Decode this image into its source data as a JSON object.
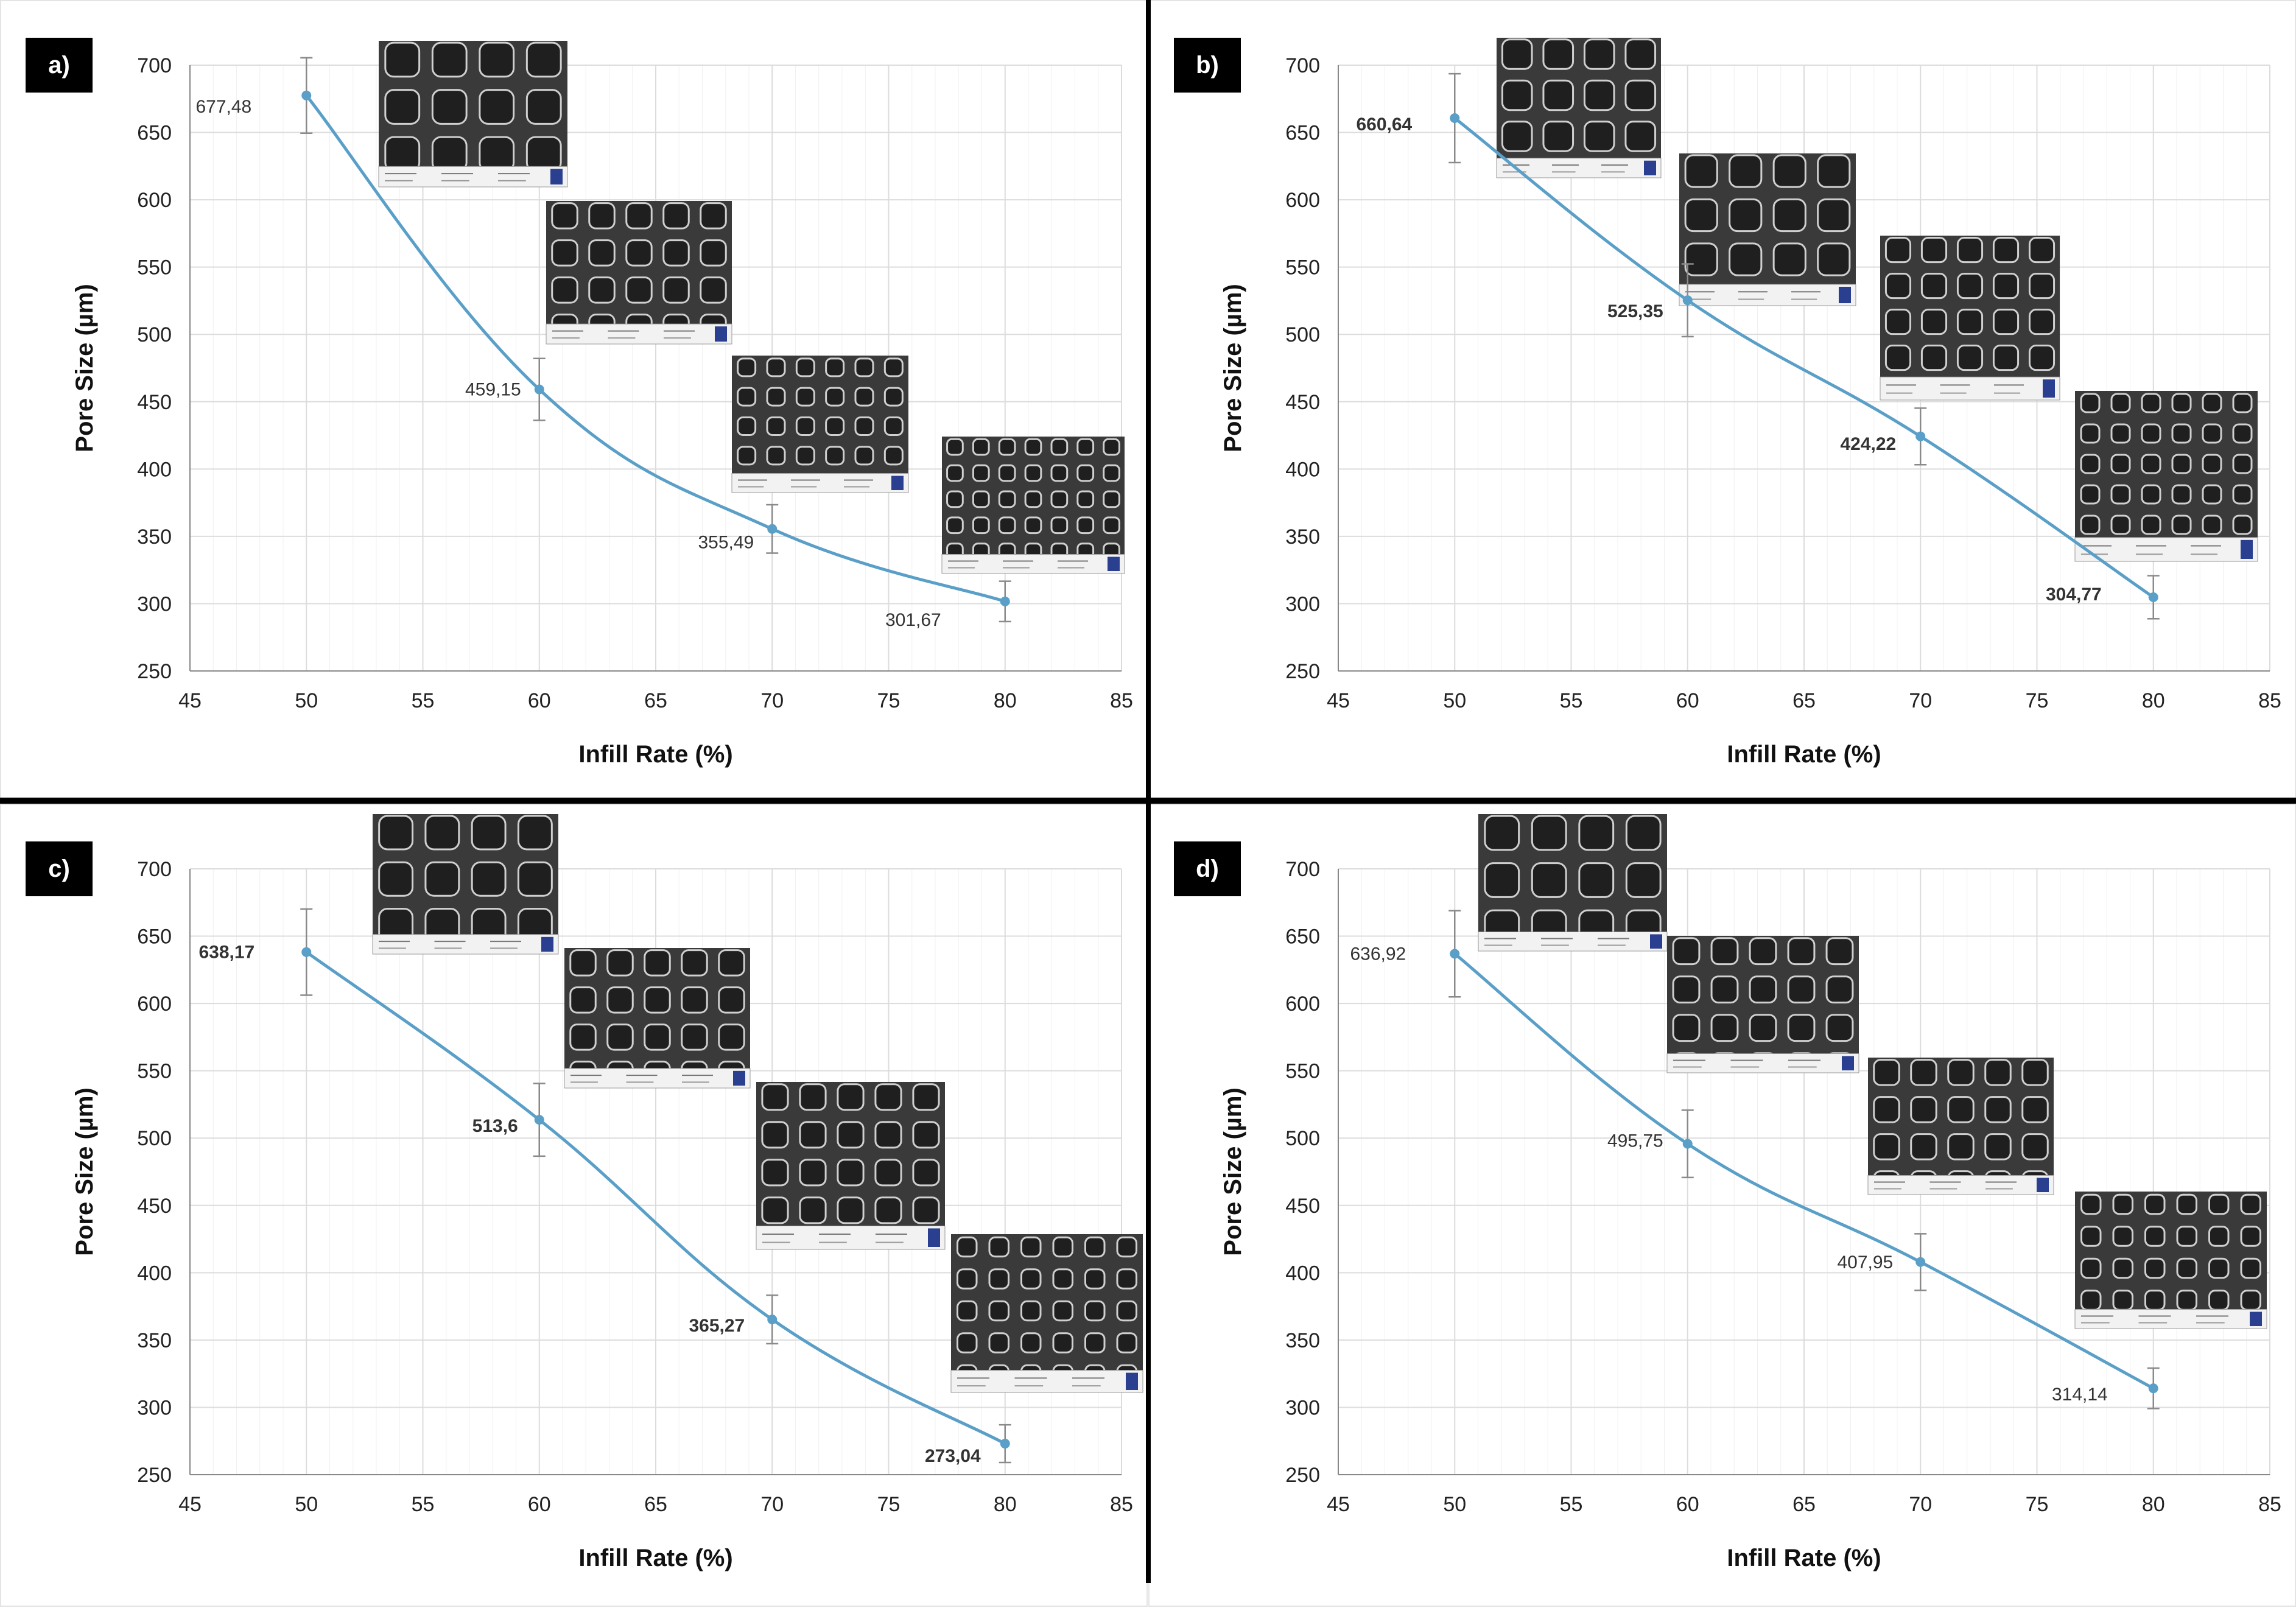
{
  "colors": {
    "line": "#5a9fc8",
    "errorbar": "#8a8a8a",
    "grid": "#e4e4e4"
  },
  "chart_data": [
    {
      "type": "line",
      "panel": "a)",
      "xlabel": "Infill Rate (%)",
      "ylabel": "Pore Size (µm)",
      "xlim": [
        45,
        85
      ],
      "ylim": [
        250,
        700
      ],
      "xticks": [
        45,
        50,
        55,
        60,
        65,
        70,
        75,
        80,
        85
      ],
      "yticks": [
        250,
        300,
        350,
        400,
        450,
        500,
        550,
        600,
        650,
        700
      ],
      "x": [
        50,
        60,
        70,
        80
      ],
      "y": [
        677.48,
        459.15,
        355.49,
        301.67
      ],
      "errors": [
        28,
        23,
        18,
        15
      ],
      "labels": [
        "677,48",
        "459,15",
        "355,49",
        "301,67"
      ],
      "label_weight": "normal"
    },
    {
      "type": "line",
      "panel": "b)",
      "xlabel": "Infill Rate (%)",
      "ylabel": "Pore Size (µm)",
      "xlim": [
        45,
        85
      ],
      "ylim": [
        250,
        700
      ],
      "xticks": [
        45,
        50,
        55,
        60,
        65,
        70,
        75,
        80,
        85
      ],
      "yticks": [
        250,
        300,
        350,
        400,
        450,
        500,
        550,
        600,
        650,
        700
      ],
      "x": [
        50,
        60,
        70,
        80
      ],
      "y": [
        660.64,
        525.35,
        424.22,
        304.77
      ],
      "errors": [
        33,
        27,
        21,
        16
      ],
      "labels": [
        "660,64",
        "525,35",
        "424,22",
        "304,77"
      ],
      "label_weight": "bold"
    },
    {
      "type": "line",
      "panel": "c)",
      "xlabel": "Infill Rate (%)",
      "ylabel": "Pore Size (µm)",
      "xlim": [
        45,
        85
      ],
      "ylim": [
        250,
        700
      ],
      "xticks": [
        45,
        50,
        55,
        60,
        65,
        70,
        75,
        80,
        85
      ],
      "yticks": [
        250,
        300,
        350,
        400,
        450,
        500,
        550,
        600,
        650,
        700
      ],
      "x": [
        50,
        60,
        70,
        80
      ],
      "y": [
        638.17,
        513.6,
        365.27,
        273.04
      ],
      "errors": [
        32,
        27,
        18,
        14
      ],
      "labels": [
        "638,17",
        "513,6",
        "365,27",
        "273,04"
      ],
      "label_weight": "bold"
    },
    {
      "type": "line",
      "panel": "d)",
      "xlabel": "Infill Rate (%)",
      "ylabel": "Pore Size (µm)",
      "xlim": [
        45,
        85
      ],
      "ylim": [
        250,
        700
      ],
      "xticks": [
        45,
        50,
        55,
        60,
        65,
        70,
        75,
        80,
        85
      ],
      "yticks": [
        250,
        300,
        350,
        400,
        450,
        500,
        550,
        600,
        650,
        700
      ],
      "x": [
        50,
        60,
        70,
        80
      ],
      "y": [
        636.92,
        495.75,
        407.95,
        314.14
      ],
      "errors": [
        32,
        25,
        21,
        15
      ],
      "labels": [
        "636,92",
        "495,75",
        "407,95",
        "314,14"
      ],
      "label_weight": "normal"
    }
  ],
  "sem_images": [
    [
      {
        "pores": 4,
        "style": "large"
      },
      {
        "pores": 5,
        "style": "medium"
      },
      {
        "pores": 6,
        "style": "small"
      },
      {
        "pores": 7,
        "style": "small"
      }
    ],
    [
      {
        "pores": 4,
        "style": "large"
      },
      {
        "pores": 4,
        "style": "large"
      },
      {
        "pores": 5,
        "style": "medium"
      },
      {
        "pores": 6,
        "style": "small"
      }
    ],
    [
      {
        "pores": 4,
        "style": "large"
      },
      {
        "pores": 5,
        "style": "medium"
      },
      {
        "pores": 5,
        "style": "medium"
      },
      {
        "pores": 6,
        "style": "small"
      }
    ],
    [
      {
        "pores": 4,
        "style": "large"
      },
      {
        "pores": 5,
        "style": "medium"
      },
      {
        "pores": 5,
        "style": "medium"
      },
      {
        "pores": 6,
        "style": "small"
      }
    ]
  ]
}
